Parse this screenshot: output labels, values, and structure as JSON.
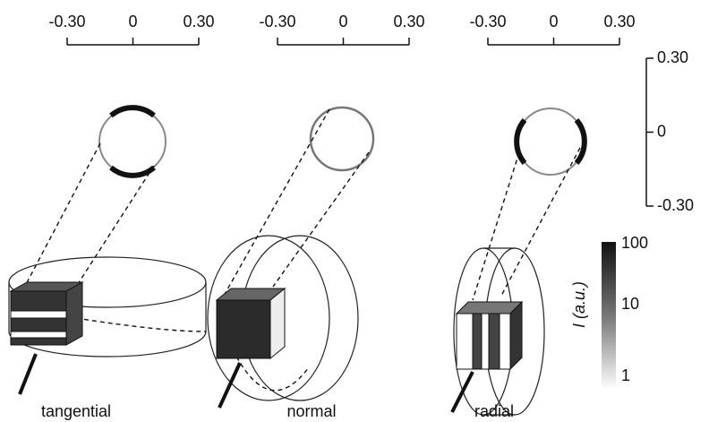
{
  "top_scales": [
    {
      "ticks": [
        "-0.30",
        "0",
        "0.30"
      ]
    },
    {
      "ticks": [
        "-0.30",
        "0",
        "0.30"
      ]
    },
    {
      "ticks": [
        "-0.30",
        "0",
        "0.30"
      ]
    }
  ],
  "side_scale": {
    "ticks": [
      "0.30",
      "0",
      "-0.30"
    ]
  },
  "colorbar": {
    "label": "I (a.u.)",
    "ticks": [
      "100",
      "10",
      "1"
    ]
  },
  "panels": [
    {
      "label": "tangential"
    },
    {
      "label": "normal"
    },
    {
      "label": "radial"
    }
  ]
}
